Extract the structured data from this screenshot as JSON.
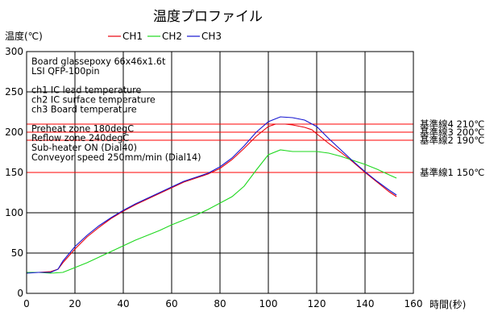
{
  "chart_data": {
    "type": "line",
    "title": "温度プロファイル",
    "ylabel": "温度(℃)",
    "xlabel": "時間(秒)",
    "xlim": [
      0,
      160
    ],
    "ylim": [
      0,
      300
    ],
    "x_ticks": [
      0,
      20,
      40,
      60,
      80,
      100,
      120,
      140,
      160
    ],
    "y_ticks": [
      0,
      50,
      100,
      150,
      200,
      250,
      300
    ],
    "grid": true,
    "legend_position": "top",
    "notes": [
      "Board glassepoxy 66x46x1.6t",
      "LSI QFP-100pin",
      "",
      "ch1 IC lead temperature",
      "ch2 IC surface temperature",
      "ch3 Board temperature",
      "",
      "Preheat zone 180degC",
      "Reflow zone 240degC",
      "Sub-heater ON (Dial40)",
      "Conveyor speed 250mm/min (Dial14)"
    ],
    "reference_lines": [
      {
        "label": "基準線4 210℃",
        "value": 210,
        "color": "#ff0000"
      },
      {
        "label": "基準線3 200℃",
        "value": 200,
        "color": "#ff0000"
      },
      {
        "label": "基準線2 190℃",
        "value": 190,
        "color": "#ff0000"
      },
      {
        "label": "基準線1 150℃",
        "value": 150,
        "color": "#ff0000"
      }
    ],
    "series": [
      {
        "name": "CH1",
        "color": "#e8000b",
        "points": [
          [
            0,
            26
          ],
          [
            5,
            26
          ],
          [
            10,
            27
          ],
          [
            13,
            30
          ],
          [
            15,
            38
          ],
          [
            20,
            55
          ],
          [
            25,
            70
          ],
          [
            30,
            82
          ],
          [
            35,
            93
          ],
          [
            40,
            102
          ],
          [
            45,
            110
          ],
          [
            50,
            117
          ],
          [
            55,
            124
          ],
          [
            60,
            131
          ],
          [
            65,
            138
          ],
          [
            70,
            143
          ],
          [
            75,
            148
          ],
          [
            80,
            155
          ],
          [
            85,
            166
          ],
          [
            90,
            180
          ],
          [
            95,
            195
          ],
          [
            100,
            207
          ],
          [
            103,
            210
          ],
          [
            107,
            210
          ],
          [
            110,
            209
          ],
          [
            115,
            206
          ],
          [
            118,
            203
          ],
          [
            120,
            198
          ],
          [
            125,
            186
          ],
          [
            130,
            175
          ],
          [
            135,
            163
          ],
          [
            140,
            150
          ],
          [
            145,
            138
          ],
          [
            150,
            126
          ],
          [
            153,
            120
          ]
        ]
      },
      {
        "name": "CH2",
        "color": "#1ed81e",
        "points": [
          [
            0,
            26
          ],
          [
            5,
            26
          ],
          [
            10,
            25
          ],
          [
            15,
            26
          ],
          [
            20,
            32
          ],
          [
            25,
            38
          ],
          [
            30,
            45
          ],
          [
            35,
            52
          ],
          [
            40,
            59
          ],
          [
            45,
            66
          ],
          [
            50,
            72
          ],
          [
            55,
            78
          ],
          [
            60,
            85
          ],
          [
            65,
            91
          ],
          [
            70,
            97
          ],
          [
            75,
            104
          ],
          [
            80,
            112
          ],
          [
            85,
            120
          ],
          [
            90,
            133
          ],
          [
            95,
            153
          ],
          [
            100,
            172
          ],
          [
            105,
            178
          ],
          [
            110,
            176
          ],
          [
            115,
            176
          ],
          [
            120,
            176
          ],
          [
            125,
            174
          ],
          [
            130,
            170
          ],
          [
            135,
            165
          ],
          [
            140,
            160
          ],
          [
            145,
            154
          ],
          [
            150,
            147
          ],
          [
            153,
            143
          ]
        ]
      },
      {
        "name": "CH3",
        "color": "#1515d0",
        "points": [
          [
            0,
            25
          ],
          [
            5,
            26
          ],
          [
            10,
            26
          ],
          [
            13,
            30
          ],
          [
            15,
            40
          ],
          [
            20,
            58
          ],
          [
            25,
            72
          ],
          [
            30,
            84
          ],
          [
            35,
            94
          ],
          [
            40,
            103
          ],
          [
            45,
            111
          ],
          [
            50,
            118
          ],
          [
            55,
            125
          ],
          [
            60,
            132
          ],
          [
            65,
            139
          ],
          [
            70,
            144
          ],
          [
            75,
            149
          ],
          [
            80,
            157
          ],
          [
            85,
            168
          ],
          [
            90,
            183
          ],
          [
            95,
            200
          ],
          [
            100,
            213
          ],
          [
            105,
            219
          ],
          [
            110,
            218
          ],
          [
            115,
            215
          ],
          [
            120,
            207
          ],
          [
            125,
            192
          ],
          [
            130,
            178
          ],
          [
            135,
            164
          ],
          [
            140,
            151
          ],
          [
            145,
            139
          ],
          [
            150,
            128
          ],
          [
            153,
            122
          ]
        ]
      }
    ]
  }
}
